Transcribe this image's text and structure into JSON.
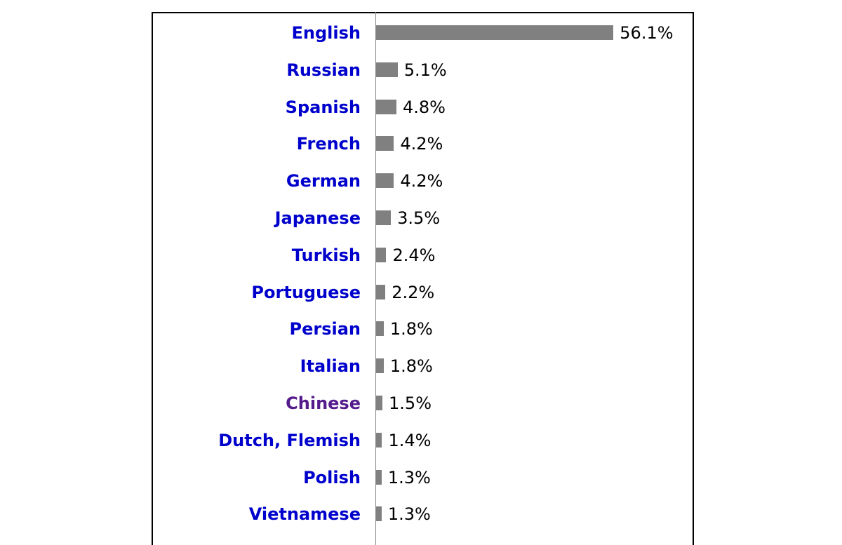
{
  "chart_data": {
    "type": "bar",
    "orientation": "horizontal",
    "categories": [
      "English",
      "Russian",
      "Spanish",
      "French",
      "German",
      "Japanese",
      "Turkish",
      "Portuguese",
      "Persian",
      "Italian",
      "Chinese",
      "Dutch, Flemish",
      "Polish",
      "Vietnamese"
    ],
    "values": [
      56.1,
      5.1,
      4.8,
      4.2,
      4.2,
      3.5,
      2.4,
      2.2,
      1.8,
      1.8,
      1.5,
      1.4,
      1.3,
      1.3
    ],
    "value_labels": [
      "56.1%",
      "5.1%",
      "4.8%",
      "4.2%",
      "4.2%",
      "3.5%",
      "2.4%",
      "2.2%",
      "1.8%",
      "1.8%",
      "1.5%",
      "1.4%",
      "1.3%",
      "1.3%"
    ],
    "visited": [
      false,
      false,
      false,
      false,
      false,
      false,
      false,
      false,
      false,
      false,
      true,
      false,
      false,
      false
    ],
    "title": "",
    "xlabel": "",
    "ylabel": "",
    "grid": false,
    "legend": "none",
    "colors": {
      "bar": "#808080",
      "link": "#0000cc",
      "visited_link": "#551a8b",
      "value_text": "#000000"
    }
  }
}
